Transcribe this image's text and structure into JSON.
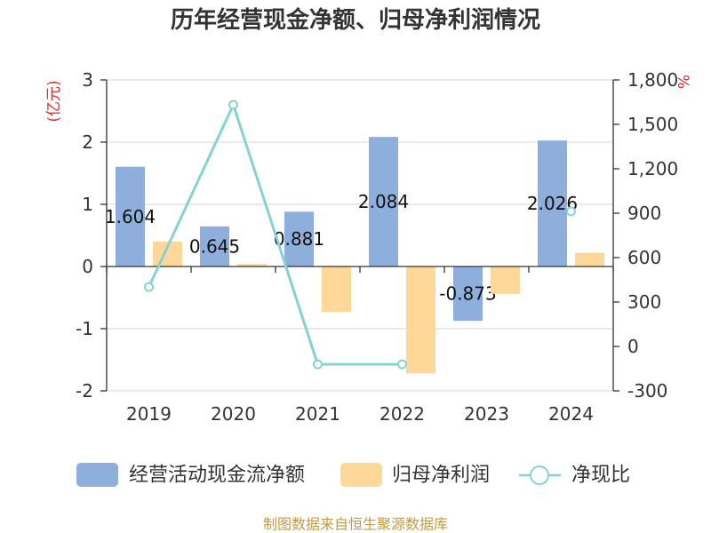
{
  "chart_data": {
    "type": "bar",
    "title": "历年经营现金净额、归母净利润情况",
    "categories": [
      "2019",
      "2020",
      "2021",
      "2022",
      "2023",
      "2024"
    ],
    "y_left": {
      "label": "(亿元)",
      "range": [
        -2,
        3
      ],
      "ticks": [
        "3",
        "2",
        "1",
        "0",
        "-1",
        "-2"
      ]
    },
    "y_right": {
      "label": "%",
      "range": [
        -300,
        1800
      ],
      "ticks": [
        "1,800",
        "1,500",
        "1,200",
        "900",
        "600",
        "300",
        "0",
        "-300"
      ]
    },
    "series": [
      {
        "name": "经营活动现金流净额",
        "type": "bar",
        "axis": "left",
        "color": "#8eaedb",
        "values": [
          1.604,
          0.645,
          0.881,
          2.084,
          -0.873,
          2.026
        ],
        "data_labels": true
      },
      {
        "name": "归母净利润",
        "type": "bar",
        "axis": "left",
        "color": "#fed898",
        "values": [
          0.4,
          0.04,
          -0.73,
          -1.72,
          -0.44,
          0.22
        ],
        "data_labels": false
      },
      {
        "name": "净现比",
        "type": "line",
        "axis": "right",
        "color": "#85d2d6",
        "values": [
          401,
          1632,
          -121,
          -121,
          null,
          912
        ]
      }
    ],
    "grid": true,
    "legend": "bottom"
  },
  "footer": "制图数据来自恒生聚源数据库"
}
